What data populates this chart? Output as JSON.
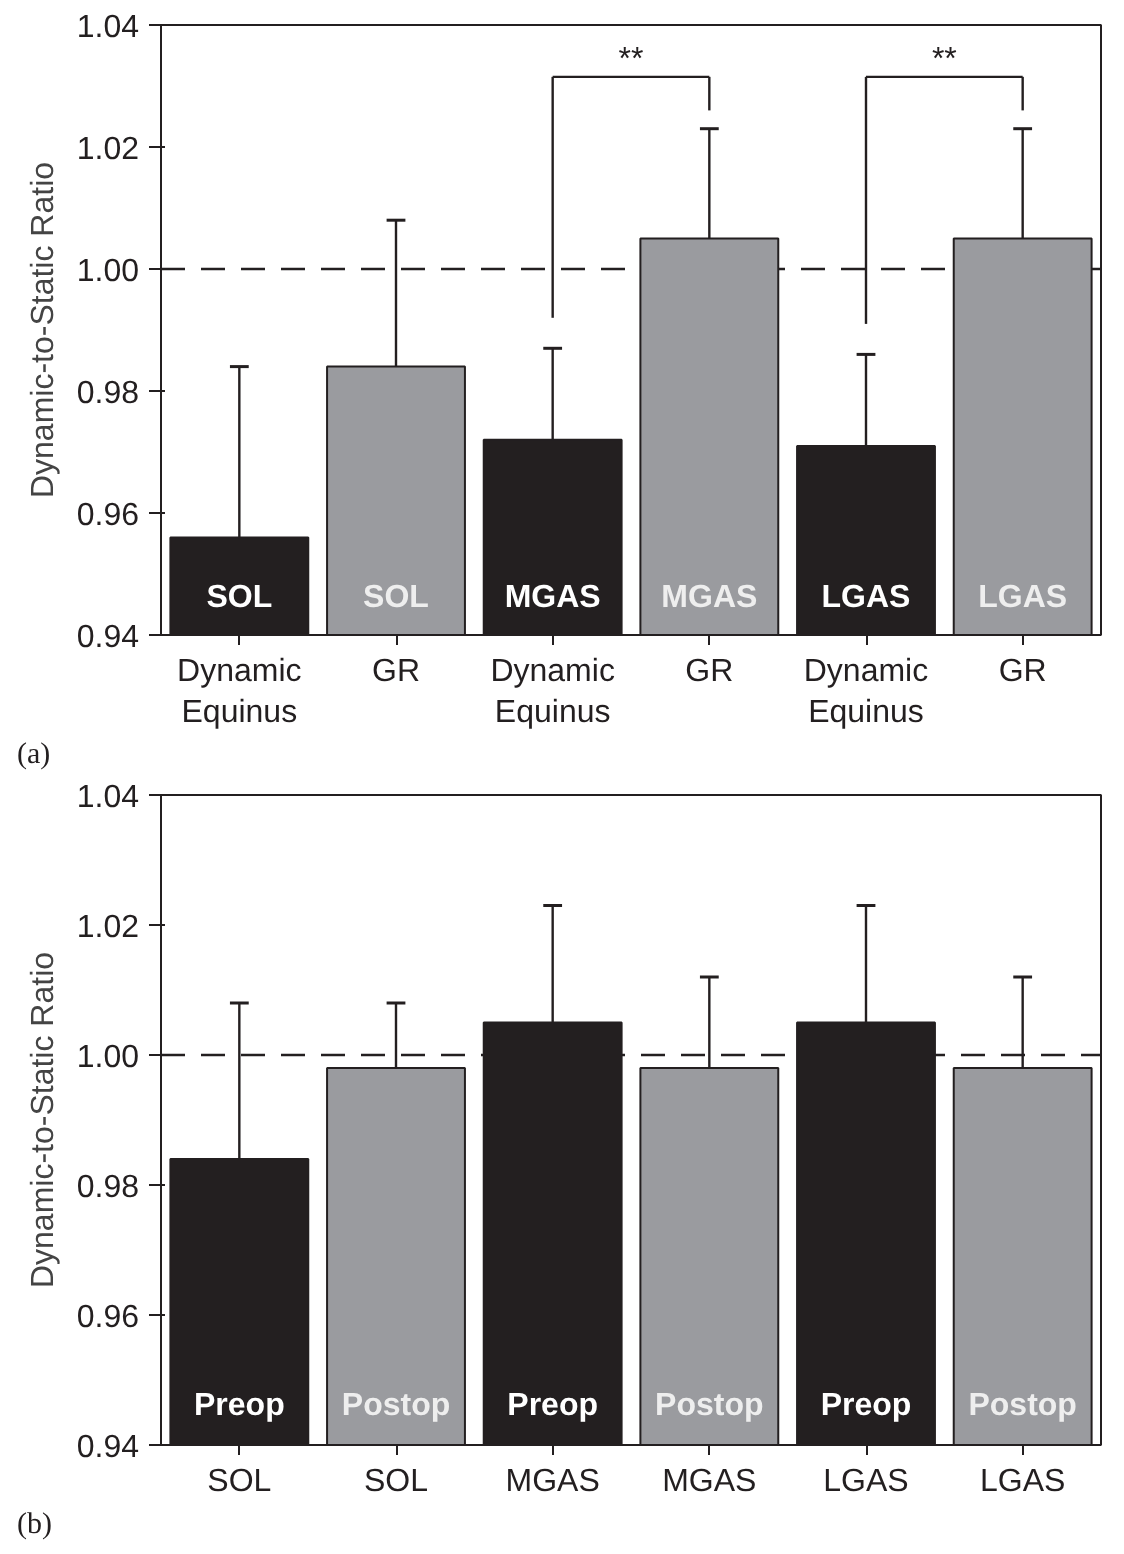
{
  "chart_data": [
    {
      "type": "bar",
      "ylabel": "Dynamic-to-Static Ratio",
      "categories": [
        "Dynamic\nEquinus",
        "GR",
        "Dynamic\nEquinus",
        "GR",
        "Dynamic\nEquinus",
        "GR"
      ],
      "values": [
        0.956,
        0.984,
        0.972,
        1.005,
        0.971,
        1.005
      ],
      "errors": [
        [
          0.956,
          0.984
        ],
        [
          0.984,
          1.008
        ],
        [
          0.972,
          0.987
        ],
        [
          1.005,
          1.023
        ],
        [
          0.971,
          0.986
        ],
        [
          1.005,
          1.023
        ]
      ],
      "colors": [
        "#231f20",
        "#9a9b9f",
        "#231f20",
        "#9a9b9f",
        "#231f20",
        "#9a9b9f"
      ],
      "ylim": [
        0.94,
        1.04
      ],
      "yticks": [
        {
          "value": 0.94,
          "label": "0.94"
        },
        {
          "value": 0.96,
          "label": "0.96"
        },
        {
          "value": 0.98,
          "label": "0.98"
        },
        {
          "value": 1.0,
          "label": "1.00"
        },
        {
          "value": 1.02,
          "label": "1.02"
        },
        {
          "value": 1.04,
          "label": "1.04"
        }
      ],
      "ref_lines": [
        {
          "axis": "y",
          "value": 1.0,
          "line_style": "dashed",
          "color": "#231f20"
        }
      ],
      "annotations": [
        "SOL",
        "SOL",
        "MGAS",
        "MGAS",
        "LGAS",
        "LGAS",
        "**",
        "**",
        "(a)"
      ],
      "grid": false
    },
    {
      "type": "bar",
      "ylabel": "Dynamic-to-Static Ratio",
      "categories": [
        "SOL",
        "SOL",
        "MGAS",
        "MGAS",
        "LGAS",
        "LGAS"
      ],
      "values": [
        0.984,
        0.998,
        1.005,
        0.998,
        1.005,
        0.998
      ],
      "errors": [
        [
          0.984,
          1.008
        ],
        [
          0.998,
          1.008
        ],
        [
          1.005,
          1.023
        ],
        [
          0.998,
          1.012
        ],
        [
          1.005,
          1.023
        ],
        [
          0.998,
          1.012
        ]
      ],
      "colors": [
        "#231f20",
        "#9a9b9f",
        "#231f20",
        "#9a9b9f",
        "#231f20",
        "#9a9b9f"
      ],
      "ylim": [
        0.94,
        1.04
      ],
      "yticks": [
        {
          "value": 0.94,
          "label": "0.94"
        },
        {
          "value": 0.96,
          "label": "0.96"
        },
        {
          "value": 0.98,
          "label": "0.98"
        },
        {
          "value": 1.0,
          "label": "1.00"
        },
        {
          "value": 1.02,
          "label": "1.02"
        },
        {
          "value": 1.04,
          "label": "1.04"
        }
      ],
      "ref_lines": [
        {
          "axis": "y",
          "value": 1.0,
          "line_style": "dashed",
          "color": "#231f20"
        }
      ],
      "annotations": [
        "Preop",
        "Postop",
        "Preop",
        "Postop",
        "Preop",
        "Postop",
        "(b)"
      ],
      "grid": false
    }
  ]
}
